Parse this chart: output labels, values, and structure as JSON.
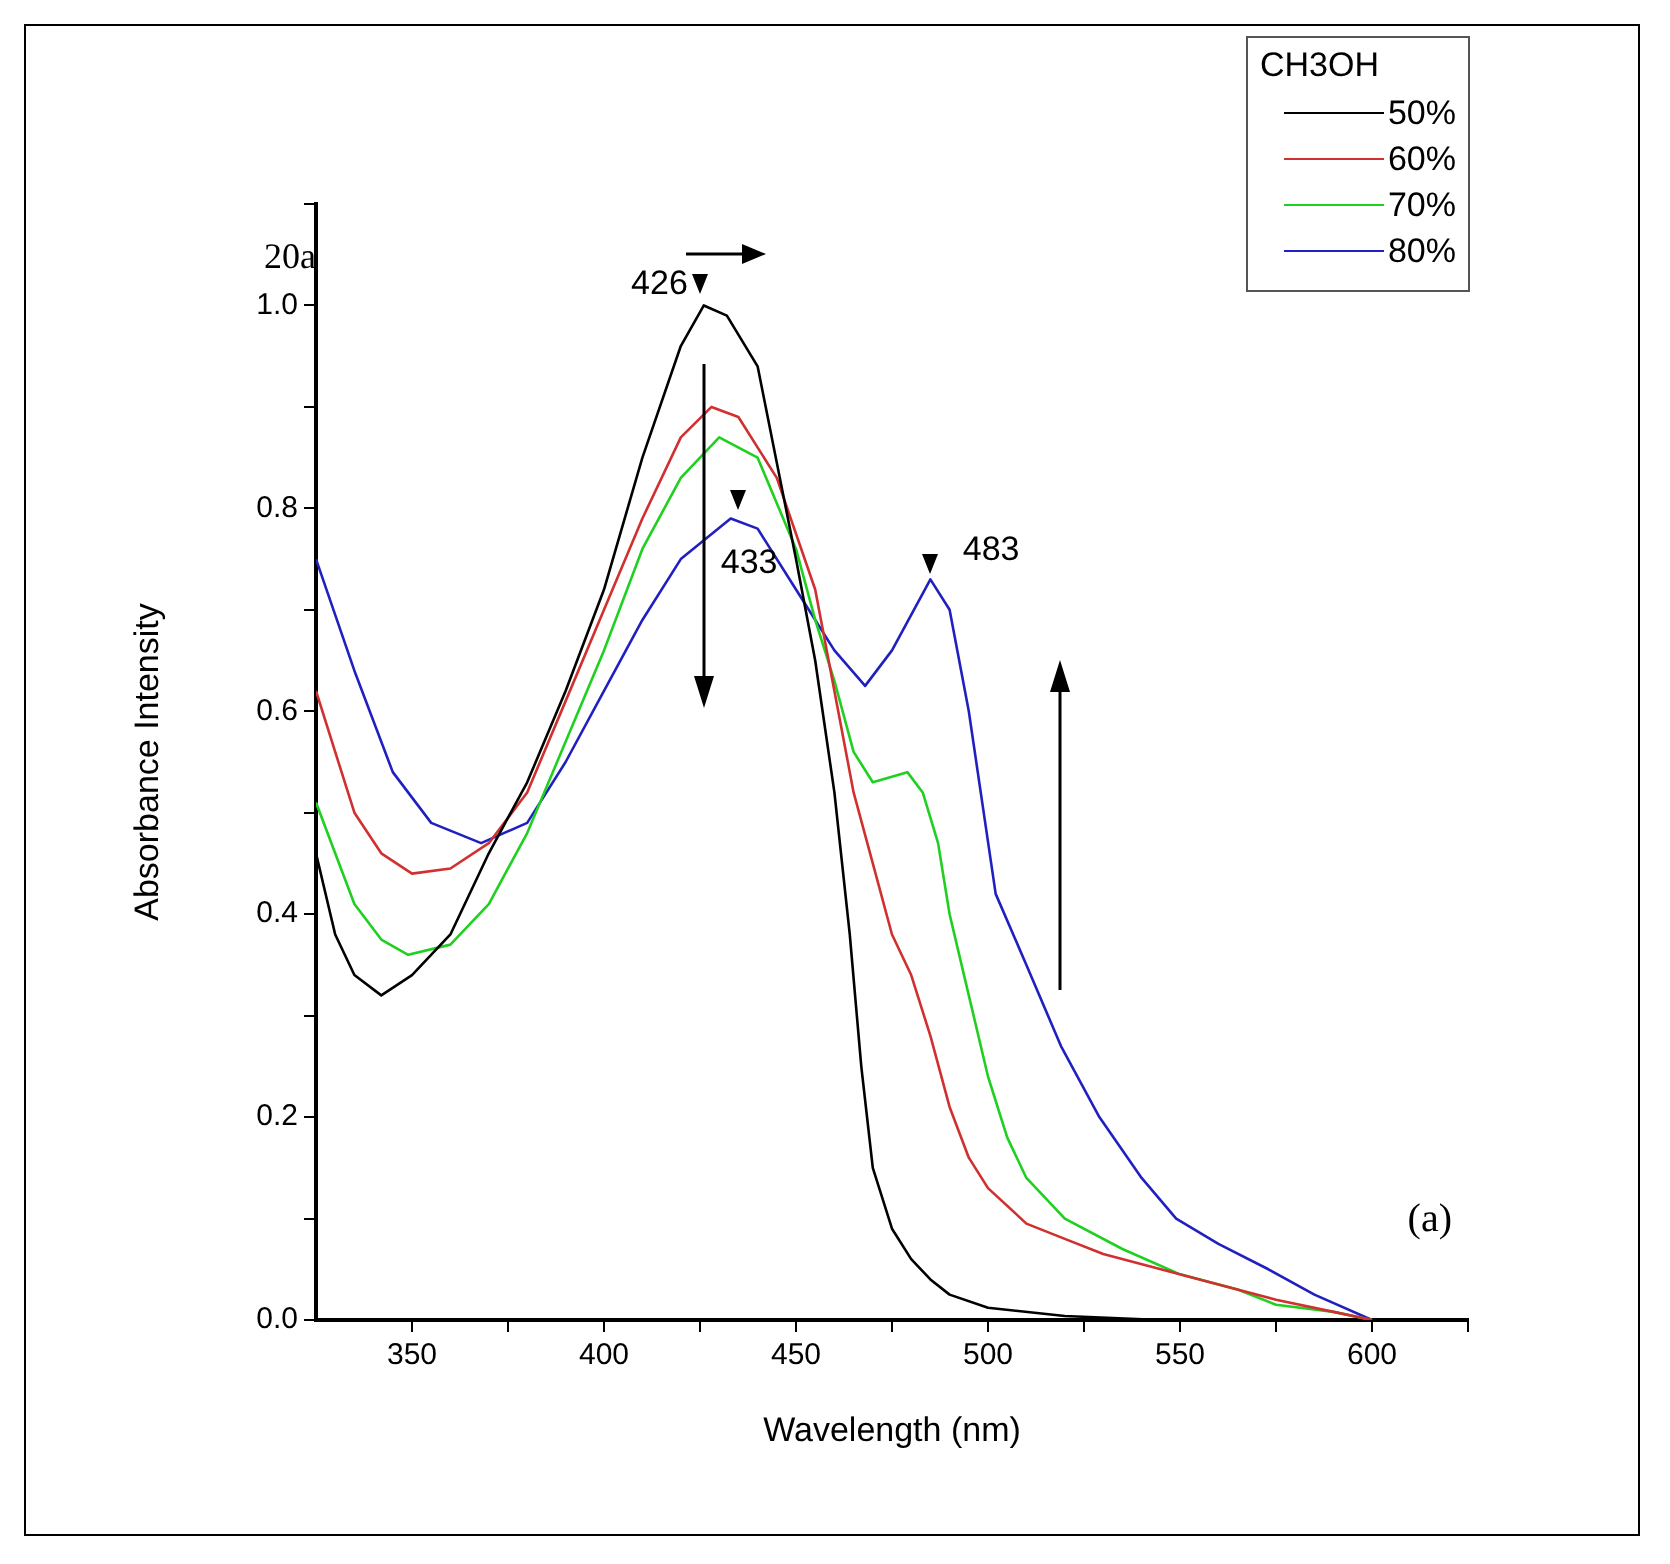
{
  "chart_data": {
    "type": "line",
    "title": "20a",
    "xlabel": "Wavelength (nm)",
    "ylabel": "Absorbance Intensity",
    "legend_title": "CH3OH",
    "xlim": [
      325,
      625
    ],
    "xticks": [
      350,
      {
        "value": 375,
        "label": null
      },
      400,
      {
        "value": 425,
        "label": null
      },
      450,
      {
        "value": 475,
        "label": null
      },
      500,
      {
        "value": 525,
        "label": null
      },
      550,
      {
        "value": 575,
        "label": null
      },
      600,
      {
        "value": 625,
        "label": null
      }
    ],
    "ylim": [
      0,
      1.1
    ],
    "yticks": [
      {
        "value": 0,
        "label": "0.0"
      },
      {
        "value": 0.1,
        "label": null
      },
      0.2,
      {
        "value": 0.3,
        "label": null
      },
      0.4,
      {
        "value": 0.5,
        "label": null
      },
      0.6,
      {
        "value": 0.7,
        "label": null
      },
      0.8,
      {
        "value": 0.9,
        "label": null
      },
      {
        "value": 1,
        "label": "1.0"
      },
      {
        "value": 1.1,
        "label": null
      }
    ],
    "grid": false,
    "legend": "top right",
    "marker": "none",
    "line_style": "solid",
    "annotations": [
      {
        "text": "426",
        "x": 426,
        "y": 1.0
      },
      {
        "text": "433",
        "x": 433,
        "y": 0.79
      },
      {
        "text": "483",
        "x": 483,
        "y": 0.73
      },
      "(a)"
    ],
    "series": [
      {
        "name": "50%",
        "color": "#000000",
        "x": [
          325,
          330,
          335,
          342,
          350,
          360,
          370,
          380,
          390,
          400,
          410,
          420,
          426,
          432,
          440,
          450,
          455,
          460,
          464,
          467,
          470,
          475,
          480,
          485,
          490,
          500,
          520,
          545
        ],
        "values": [
          0.46,
          0.38,
          0.34,
          0.32,
          0.34,
          0.38,
          0.46,
          0.53,
          0.62,
          0.72,
          0.85,
          0.96,
          1.0,
          0.99,
          0.94,
          0.75,
          0.65,
          0.52,
          0.38,
          0.25,
          0.15,
          0.09,
          0.06,
          0.04,
          0.025,
          0.012,
          0.004,
          0.0
        ]
      },
      {
        "name": "60%",
        "color": "#d03030",
        "x": [
          325,
          335,
          342,
          350,
          360,
          370,
          380,
          390,
          400,
          410,
          420,
          428,
          435,
          445,
          455,
          460,
          465,
          470,
          475,
          480,
          485,
          490,
          495,
          500,
          510,
          520,
          530,
          545,
          560,
          575,
          590,
          600
        ],
        "values": [
          0.62,
          0.5,
          0.46,
          0.44,
          0.445,
          0.47,
          0.52,
          0.61,
          0.7,
          0.79,
          0.87,
          0.9,
          0.89,
          0.83,
          0.72,
          0.62,
          0.52,
          0.45,
          0.38,
          0.34,
          0.28,
          0.21,
          0.16,
          0.13,
          0.095,
          0.08,
          0.065,
          0.05,
          0.035,
          0.02,
          0.008,
          0.0
        ]
      },
      {
        "name": "70%",
        "color": "#20d020",
        "x": [
          325,
          335,
          342,
          349,
          360,
          370,
          380,
          390,
          400,
          410,
          420,
          430,
          440,
          450,
          455,
          460,
          465,
          470,
          479,
          483,
          487,
          490,
          495,
          500,
          505,
          510,
          520,
          535,
          550,
          565,
          575,
          590,
          600
        ],
        "values": [
          0.51,
          0.41,
          0.375,
          0.36,
          0.37,
          0.41,
          0.48,
          0.57,
          0.66,
          0.76,
          0.83,
          0.87,
          0.85,
          0.76,
          0.69,
          0.63,
          0.56,
          0.53,
          0.54,
          0.52,
          0.47,
          0.4,
          0.32,
          0.24,
          0.18,
          0.14,
          0.1,
          0.07,
          0.045,
          0.03,
          0.015,
          0.008,
          0.0
        ]
      },
      {
        "name": "80%",
        "color": "#2020c0",
        "x": [
          325,
          335,
          345,
          355,
          368,
          380,
          390,
          400,
          410,
          420,
          433,
          440,
          450,
          460,
          468,
          475,
          485,
          490,
          495,
          502,
          510,
          519,
          529,
          540,
          549,
          560,
          573,
          585,
          600
        ],
        "values": [
          0.75,
          0.64,
          0.54,
          0.49,
          0.47,
          0.49,
          0.55,
          0.62,
          0.69,
          0.75,
          0.79,
          0.78,
          0.72,
          0.66,
          0.625,
          0.66,
          0.73,
          0.7,
          0.6,
          0.42,
          0.35,
          0.27,
          0.2,
          0.14,
          0.1,
          0.075,
          0.05,
          0.025,
          0.0
        ]
      }
    ]
  }
}
